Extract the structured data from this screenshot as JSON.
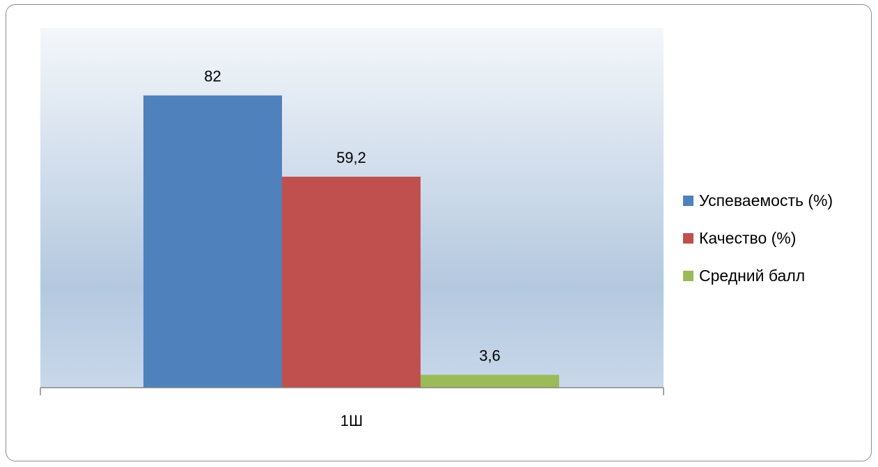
{
  "chart_data": {
    "type": "bar",
    "title": "",
    "xlabel": "",
    "ylabel": "",
    "categories": [
      "1Ш"
    ],
    "ylim": [
      0,
      90
    ],
    "grid": false,
    "legend_position": "right",
    "series": [
      {
        "name": "Успеваемость (%)",
        "values": [
          82
        ],
        "labels": [
          "82"
        ],
        "color": "#4F81BD"
      },
      {
        "name": "Качество (%)",
        "values": [
          59.2
        ],
        "labels": [
          "59,2"
        ],
        "color": "#C0504D"
      },
      {
        "name": "Средний балл",
        "values": [
          3.6
        ],
        "labels": [
          "3,6"
        ],
        "color": "#9BBB59"
      }
    ]
  }
}
